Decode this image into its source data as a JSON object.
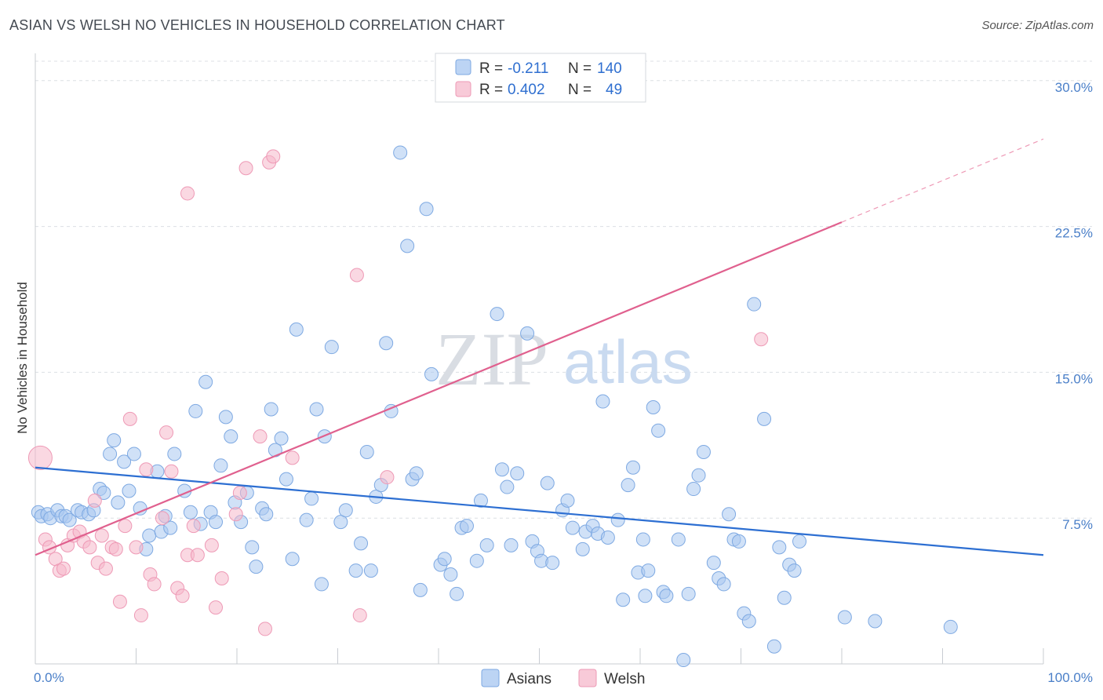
{
  "header": {
    "title": "ASIAN VS WELSH NO VEHICLES IN HOUSEHOLD CORRELATION CHART",
    "source": "Source: ZipAtlas.com"
  },
  "watermark": {
    "part1": "ZIP",
    "part2": "atlas"
  },
  "legend_top": {
    "rows": [
      {
        "r_label": "R = ",
        "r_value": "-0.211",
        "n_label": "N = ",
        "n_value": "140",
        "color": "#a8c8f0"
      },
      {
        "r_label": "R = ",
        "r_value": "0.402",
        "n_label": "N = ",
        "n_value": "49",
        "color": "#f5b8cb"
      }
    ]
  },
  "chart_data": {
    "type": "scatter",
    "title": "ASIAN VS WELSH NO VEHICLES IN HOUSEHOLD CORRELATION CHART",
    "xlabel": "",
    "ylabel": "No Vehicles in Household",
    "xlim": [
      0,
      100
    ],
    "ylim": [
      0,
      31
    ],
    "x_tick_labels": [
      "0.0%",
      "100.0%"
    ],
    "y_ticks": [
      7.5,
      15.0,
      22.5,
      30.0
    ],
    "y_tick_labels": [
      "7.5%",
      "15.0%",
      "22.5%",
      "30.0%"
    ],
    "grid": true,
    "legend_position": "bottom-center",
    "colors": {
      "asians": "#6fa3e4",
      "welsh": "#f08fae",
      "asians_line": "#2d6fd2",
      "welsh_line": "#e0608e"
    },
    "series": [
      {
        "name": "Asians",
        "trend": {
          "x": [
            0,
            100
          ],
          "y": [
            10.1,
            5.6
          ]
        },
        "points": [
          [
            0.3,
            7.8
          ],
          [
            0.6,
            7.6
          ],
          [
            1.2,
            7.7
          ],
          [
            1.5,
            7.5
          ],
          [
            2.2,
            7.9
          ],
          [
            2.6,
            7.6
          ],
          [
            3.0,
            7.6
          ],
          [
            3.4,
            7.4
          ],
          [
            4.2,
            7.9
          ],
          [
            4.6,
            7.8
          ],
          [
            5.3,
            7.7
          ],
          [
            5.8,
            7.9
          ],
          [
            6.4,
            9.0
          ],
          [
            6.8,
            8.8
          ],
          [
            7.4,
            10.8
          ],
          [
            7.8,
            11.5
          ],
          [
            8.2,
            8.3
          ],
          [
            8.8,
            10.4
          ],
          [
            9.3,
            8.9
          ],
          [
            9.8,
            10.8
          ],
          [
            10.4,
            8.0
          ],
          [
            11.0,
            5.9
          ],
          [
            11.3,
            6.6
          ],
          [
            12.1,
            9.9
          ],
          [
            12.5,
            6.8
          ],
          [
            12.9,
            7.6
          ],
          [
            13.4,
            7.0
          ],
          [
            13.8,
            10.8
          ],
          [
            14.8,
            8.9
          ],
          [
            15.4,
            7.8
          ],
          [
            15.9,
            13.0
          ],
          [
            16.4,
            7.2
          ],
          [
            16.9,
            14.5
          ],
          [
            17.4,
            7.8
          ],
          [
            17.9,
            7.3
          ],
          [
            18.4,
            10.2
          ],
          [
            18.9,
            12.7
          ],
          [
            19.4,
            11.7
          ],
          [
            19.8,
            8.3
          ],
          [
            20.4,
            7.3
          ],
          [
            21.0,
            8.8
          ],
          [
            21.5,
            6.0
          ],
          [
            21.9,
            5.0
          ],
          [
            22.5,
            8.0
          ],
          [
            22.9,
            7.7
          ],
          [
            23.4,
            13.1
          ],
          [
            23.8,
            11.0
          ],
          [
            24.4,
            11.6
          ],
          [
            24.9,
            9.5
          ],
          [
            25.5,
            5.4
          ],
          [
            25.9,
            17.2
          ],
          [
            26.9,
            7.4
          ],
          [
            27.4,
            8.5
          ],
          [
            27.9,
            13.1
          ],
          [
            28.4,
            4.1
          ],
          [
            28.7,
            11.7
          ],
          [
            29.4,
            16.3
          ],
          [
            30.3,
            7.3
          ],
          [
            30.8,
            7.9
          ],
          [
            31.8,
            4.8
          ],
          [
            32.3,
            6.2
          ],
          [
            32.9,
            10.9
          ],
          [
            33.3,
            4.8
          ],
          [
            33.8,
            8.6
          ],
          [
            34.3,
            9.2
          ],
          [
            34.8,
            16.5
          ],
          [
            35.3,
            13.0
          ],
          [
            36.2,
            26.3
          ],
          [
            36.9,
            21.5
          ],
          [
            37.4,
            9.5
          ],
          [
            37.8,
            9.8
          ],
          [
            38.2,
            3.8
          ],
          [
            38.8,
            23.4
          ],
          [
            39.3,
            14.9
          ],
          [
            40.2,
            5.1
          ],
          [
            40.6,
            5.4
          ],
          [
            41.2,
            4.6
          ],
          [
            41.8,
            3.6
          ],
          [
            42.3,
            7.0
          ],
          [
            42.8,
            7.1
          ],
          [
            43.8,
            5.3
          ],
          [
            44.2,
            8.4
          ],
          [
            44.8,
            6.1
          ],
          [
            45.8,
            18.0
          ],
          [
            46.3,
            10.0
          ],
          [
            46.8,
            9.1
          ],
          [
            47.2,
            6.1
          ],
          [
            47.8,
            9.8
          ],
          [
            48.8,
            17.0
          ],
          [
            49.3,
            6.3
          ],
          [
            49.8,
            5.8
          ],
          [
            50.2,
            5.3
          ],
          [
            50.8,
            9.3
          ],
          [
            51.3,
            5.2
          ],
          [
            52.3,
            7.9
          ],
          [
            52.8,
            8.4
          ],
          [
            53.3,
            7.0
          ],
          [
            54.3,
            5.9
          ],
          [
            54.6,
            6.8
          ],
          [
            55.3,
            7.1
          ],
          [
            55.8,
            6.7
          ],
          [
            56.3,
            13.5
          ],
          [
            56.8,
            6.5
          ],
          [
            57.8,
            7.4
          ],
          [
            58.3,
            3.3
          ],
          [
            58.8,
            9.2
          ],
          [
            59.3,
            10.1
          ],
          [
            59.8,
            4.7
          ],
          [
            60.3,
            6.4
          ],
          [
            60.8,
            4.8
          ],
          [
            61.3,
            13.2
          ],
          [
            61.8,
            12.0
          ],
          [
            62.3,
            3.7
          ],
          [
            62.6,
            3.5
          ],
          [
            63.8,
            6.4
          ],
          [
            64.3,
            0.2
          ],
          [
            64.8,
            3.6
          ],
          [
            65.3,
            9.0
          ],
          [
            65.8,
            9.7
          ],
          [
            66.3,
            10.9
          ],
          [
            67.3,
            5.2
          ],
          [
            67.8,
            4.4
          ],
          [
            68.3,
            4.1
          ],
          [
            68.8,
            7.7
          ],
          [
            69.3,
            6.4
          ],
          [
            69.8,
            6.3
          ],
          [
            70.3,
            2.6
          ],
          [
            70.8,
            2.2
          ],
          [
            71.3,
            18.5
          ],
          [
            72.3,
            12.6
          ],
          [
            73.3,
            0.9
          ],
          [
            73.8,
            6.0
          ],
          [
            74.3,
            3.4
          ],
          [
            74.8,
            5.1
          ],
          [
            75.3,
            4.8
          ],
          [
            75.8,
            6.3
          ],
          [
            80.3,
            2.4
          ],
          [
            83.3,
            2.2
          ],
          [
            90.8,
            1.9
          ],
          [
            60.5,
            3.5
          ]
        ]
      },
      {
        "name": "Welsh",
        "trend": {
          "x": [
            0,
            100
          ],
          "y": [
            5.6,
            27.0
          ],
          "solid_until_x": 80
        },
        "points": [
          [
            0.5,
            10.6
          ],
          [
            1.0,
            6.4
          ],
          [
            1.4,
            6.0
          ],
          [
            2.0,
            5.4
          ],
          [
            2.4,
            4.8
          ],
          [
            2.8,
            4.9
          ],
          [
            3.2,
            6.1
          ],
          [
            3.8,
            6.6
          ],
          [
            4.4,
            6.8
          ],
          [
            4.8,
            6.3
          ],
          [
            5.4,
            6.0
          ],
          [
            5.9,
            8.4
          ],
          [
            6.2,
            5.2
          ],
          [
            6.6,
            6.6
          ],
          [
            7.0,
            4.9
          ],
          [
            7.6,
            6.0
          ],
          [
            8.0,
            5.9
          ],
          [
            8.4,
            3.2
          ],
          [
            8.9,
            7.1
          ],
          [
            9.4,
            12.6
          ],
          [
            10.0,
            6.0
          ],
          [
            10.5,
            2.5
          ],
          [
            11.0,
            10.0
          ],
          [
            11.4,
            4.6
          ],
          [
            11.8,
            4.1
          ],
          [
            12.6,
            7.5
          ],
          [
            13.0,
            11.9
          ],
          [
            13.5,
            9.9
          ],
          [
            14.1,
            3.9
          ],
          [
            14.6,
            3.5
          ],
          [
            15.1,
            5.6
          ],
          [
            15.1,
            24.2
          ],
          [
            15.7,
            7.1
          ],
          [
            16.1,
            5.6
          ],
          [
            17.5,
            6.1
          ],
          [
            17.9,
            2.9
          ],
          [
            18.5,
            4.4
          ],
          [
            19.9,
            7.7
          ],
          [
            20.3,
            8.8
          ],
          [
            20.9,
            25.5
          ],
          [
            22.3,
            11.7
          ],
          [
            22.8,
            1.8
          ],
          [
            23.2,
            25.8
          ],
          [
            23.6,
            26.1
          ],
          [
            25.5,
            10.6
          ],
          [
            31.9,
            20.0
          ],
          [
            32.2,
            2.5
          ],
          [
            34.9,
            9.6
          ],
          [
            72.0,
            16.7
          ]
        ]
      }
    ]
  }
}
